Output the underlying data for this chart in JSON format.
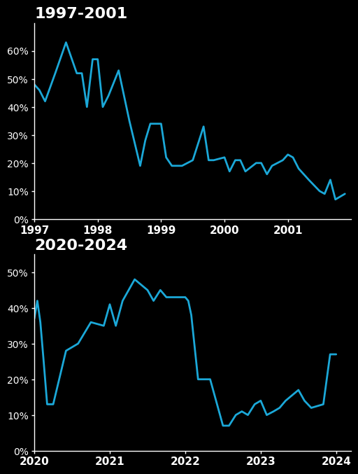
{
  "background_color": "#000000",
  "line_color": "#1ba8d8",
  "line_width": 2.0,
  "title1": "1997-2001",
  "title2": "2020-2024",
  "title_fontsize": 16,
  "title_color": "#ffffff",
  "tick_color": "#ffffff",
  "axis_color": "#ffffff",
  "tick_fontsize": 10,
  "xtick_fontsize": 11,
  "panel1": {
    "x": [
      1997.0,
      1997.08,
      1997.17,
      1997.33,
      1997.5,
      1997.67,
      1997.75,
      1997.83,
      1997.92,
      1998.0,
      1998.08,
      1998.17,
      1998.33,
      1998.5,
      1998.67,
      1998.75,
      1998.83,
      1999.0,
      1999.08,
      1999.17,
      1999.33,
      1999.5,
      1999.67,
      1999.75,
      1999.83,
      2000.0,
      2000.08,
      2000.17,
      2000.25,
      2000.33,
      2000.5,
      2000.58,
      2000.67,
      2000.75,
      2000.92,
      2001.0,
      2001.08,
      2001.17,
      2001.25,
      2001.33,
      2001.5,
      2001.58,
      2001.67,
      2001.75,
      2001.9
    ],
    "y": [
      48,
      46,
      42,
      52,
      63,
      52,
      52,
      40,
      57,
      57,
      40,
      44,
      53,
      35,
      19,
      28,
      34,
      34,
      22,
      19,
      19,
      21,
      33,
      21,
      21,
      22,
      17,
      21,
      21,
      17,
      20,
      20,
      16,
      19,
      21,
      23,
      22,
      18,
      16,
      14,
      10,
      9,
      14,
      7,
      9
    ],
    "xlim": [
      1997.0,
      2002.0
    ],
    "ylim": [
      0,
      70
    ],
    "yticks": [
      0,
      10,
      20,
      30,
      40,
      50,
      60
    ],
    "xticks": [
      1997,
      1998,
      1999,
      2000,
      2001
    ]
  },
  "panel2": {
    "x": [
      2020.0,
      2020.04,
      2020.08,
      2020.12,
      2020.17,
      2020.25,
      2020.42,
      2020.58,
      2020.75,
      2020.92,
      2021.0,
      2021.08,
      2021.17,
      2021.33,
      2021.5,
      2021.58,
      2021.67,
      2021.75,
      2021.92,
      2022.0,
      2022.04,
      2022.08,
      2022.17,
      2022.33,
      2022.5,
      2022.58,
      2022.67,
      2022.75,
      2022.83,
      2022.92,
      2023.0,
      2023.08,
      2023.17,
      2023.25,
      2023.33,
      2023.5,
      2023.58,
      2023.67,
      2023.83,
      2023.92,
      2024.0
    ],
    "y": [
      37,
      42,
      36,
      26,
      13,
      13,
      28,
      30,
      36,
      35,
      41,
      35,
      42,
      48,
      45,
      42,
      45,
      43,
      43,
      43,
      42,
      38,
      20,
      20,
      7,
      7,
      10,
      11,
      10,
      13,
      14,
      10,
      11,
      12,
      14,
      17,
      14,
      12,
      13,
      27,
      27
    ],
    "xlim": [
      2020.0,
      2024.2
    ],
    "ylim": [
      0,
      55
    ],
    "yticks": [
      0,
      10,
      20,
      30,
      40,
      50
    ],
    "xticks": [
      2020,
      2021,
      2022,
      2023,
      2024
    ]
  }
}
